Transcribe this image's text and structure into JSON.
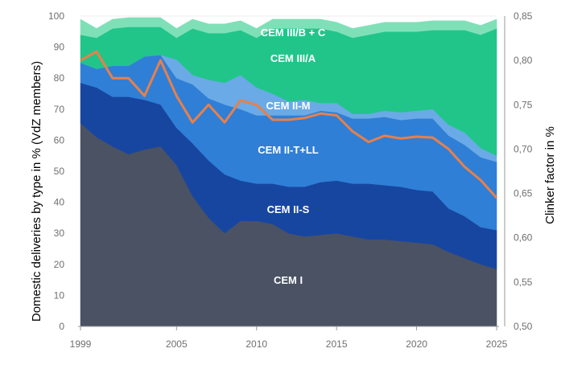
{
  "chart_data": {
    "type": "area",
    "stacked": true,
    "xlabel": "",
    "ylabel": "Domestic deliveries by type in % (VdZ members)",
    "y2label": "Clinker factor in %",
    "xlim": [
      1999,
      2025
    ],
    "ylim": [
      0,
      100
    ],
    "y2lim": [
      0.5,
      0.85
    ],
    "x_ticks": [
      "1999",
      "2005",
      "2010",
      "2015",
      "2020",
      "2025"
    ],
    "y_ticks": [
      "0",
      "10",
      "20",
      "30",
      "40",
      "50",
      "60",
      "70",
      "80",
      "90",
      "100"
    ],
    "y2_ticks": [
      "0,50",
      "0,55",
      "0,60",
      "0,65",
      "0,70",
      "0,75",
      "0,80",
      "0,85"
    ],
    "x": [
      1999,
      2000,
      2001,
      2002,
      2003,
      2004,
      2005,
      2006,
      2007,
      2008,
      2009,
      2010,
      2011,
      2012,
      2013,
      2014,
      2015,
      2016,
      2017,
      2018,
      2019,
      2020,
      2021,
      2022,
      2023,
      2024,
      2025
    ],
    "area_series": [
      {
        "name": "CEM I",
        "color": "#4a5263",
        "values": [
          65.5,
          61,
          58,
          55.5,
          57,
          58,
          52,
          42,
          35,
          30,
          34,
          34,
          33,
          30,
          29,
          29.5,
          30,
          29,
          28,
          28,
          27.5,
          27,
          26.5,
          24,
          22,
          20,
          18.5
        ]
      },
      {
        "name": "CEM II-S",
        "color": "#1746a0",
        "values": [
          13,
          16,
          16,
          18.5,
          16,
          13.5,
          12,
          17,
          18.5,
          19,
          13,
          12,
          13,
          15,
          16,
          17,
          17,
          17,
          18,
          17.5,
          17.5,
          17,
          17,
          14,
          13.5,
          12,
          12.5
        ]
      },
      {
        "name": "CEM II-T+LL",
        "color": "#2f7fd6",
        "values": [
          6.5,
          6,
          10,
          10,
          14,
          16,
          16,
          19,
          20,
          22.5,
          23,
          22,
          22,
          23,
          23,
          23,
          22,
          21,
          21,
          22,
          21.5,
          23,
          23.5,
          23.5,
          23,
          22.5,
          22
        ]
      },
      {
        "name": "CEM II-M",
        "color": "#6aaae6",
        "values": [
          0,
          0,
          0,
          0,
          0,
          0,
          6,
          3,
          6,
          7,
          11,
          9,
          7,
          4.5,
          5,
          2.5,
          3,
          1.5,
          1.5,
          2,
          2.5,
          2.5,
          3,
          3.5,
          4,
          3,
          2
        ]
      },
      {
        "name": "CEM III/A",
        "color": "#21c58a",
        "values": [
          9,
          10,
          12,
          12.5,
          9.5,
          9,
          7,
          15,
          15,
          16,
          14.5,
          16,
          21,
          23.5,
          23,
          24,
          23,
          24.5,
          25.5,
          25.5,
          26,
          25.5,
          25.5,
          30.5,
          33,
          36.5,
          41
        ]
      },
      {
        "name": "CEM III/B + C",
        "color": "#7fe0b8",
        "values": [
          5,
          3,
          3,
          3,
          3,
          3,
          3,
          3,
          3,
          3,
          3,
          3,
          3,
          3,
          3,
          3,
          3,
          3,
          3,
          3,
          3,
          3,
          3,
          3,
          3,
          3,
          3
        ]
      }
    ],
    "line_series": {
      "name": "Clinker factor",
      "color": "#e8804a",
      "axis": "y2",
      "values": [
        0.8,
        0.81,
        0.78,
        0.78,
        0.76,
        0.8,
        0.76,
        0.73,
        0.75,
        0.73,
        0.755,
        0.75,
        0.733,
        0.733,
        0.735,
        0.74,
        0.738,
        0.72,
        0.708,
        0.715,
        0.712,
        0.714,
        0.713,
        0.7,
        0.68,
        0.665,
        0.645
      ]
    },
    "series_labels": [
      "CEM III/B + C",
      "CEM III/A",
      "CEM II-M",
      "CEM II-T+LL",
      "CEM II-S",
      "CEM I"
    ]
  }
}
